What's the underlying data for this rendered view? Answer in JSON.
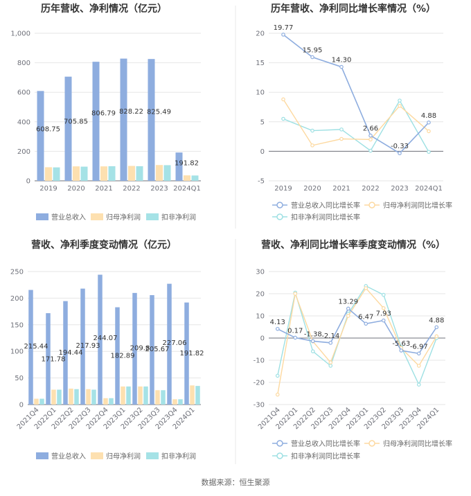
{
  "source_note": "数据来源：恒生聚源",
  "colors": {
    "rev": "#8eaddf",
    "np": "#fde0b0",
    "dnp": "#a5e2e6",
    "revLine": "#8eaddf",
    "npLine": "#fdd9a0",
    "dnpLine": "#9de0e3"
  },
  "chart_data": [
    {
      "id": "annual-amount",
      "type": "bar",
      "title": "历年营收、净利情况（亿元）",
      "categories": [
        "2019",
        "2020",
        "2021",
        "2022",
        "2023",
        "2024Q1"
      ],
      "ylim": [
        0,
        1000
      ],
      "yticks": [
        "0",
        "200",
        "400",
        "600",
        "800",
        "1,000"
      ],
      "series": [
        {
          "name": "营业总收入",
          "values": [
            608.75,
            705.85,
            806.79,
            828.22,
            825.49,
            191.82
          ],
          "labels": [
            "608.75",
            "705.85",
            "806.79",
            "828.22",
            "825.49",
            "191.82"
          ]
        },
        {
          "name": "归母净利润",
          "values": [
            92,
            98,
            98,
            101,
            107,
            37
          ]
        },
        {
          "name": "扣非净利润",
          "values": [
            91,
            96,
            99,
            99,
            106,
            36
          ]
        }
      ]
    },
    {
      "id": "annual-growth",
      "type": "line",
      "title": "历年营收、净利同比增长率情况（%）",
      "categories": [
        "2019",
        "2020",
        "2021",
        "2022",
        "2023",
        "2024Q1"
      ],
      "ylim": [
        -5,
        20
      ],
      "yticks": [
        "-5",
        "0",
        "5",
        "10",
        "15",
        "20"
      ],
      "series": [
        {
          "name": "营业总收入同比增长率",
          "values": [
            19.77,
            15.95,
            14.3,
            2.66,
            -0.33,
            4.88
          ],
          "labels": [
            "19.77",
            "15.95",
            "14.30",
            "2.66",
            "-0.33",
            "4.88"
          ]
        },
        {
          "name": "归母净利润同比增长率",
          "values": [
            8.8,
            1.0,
            2.1,
            2.0,
            7.7,
            3.4
          ]
        },
        {
          "name": "扣非净利润同比增长率",
          "values": [
            5.5,
            3.5,
            3.7,
            0.1,
            8.6,
            -0.1
          ]
        }
      ]
    },
    {
      "id": "quarterly-amount",
      "type": "bar",
      "title": "营收、净利季度变动情况（亿元）",
      "categories": [
        "2021Q4",
        "2022Q1",
        "2022Q2",
        "2022Q3",
        "2022Q4",
        "2023Q1",
        "2023Q2",
        "2023Q3",
        "2023Q4",
        "2024Q1"
      ],
      "ylim": [
        0,
        250
      ],
      "yticks": [
        "0",
        "50",
        "100",
        "150",
        "200",
        "250"
      ],
      "series": [
        {
          "name": "营业总收入",
          "values": [
            215.44,
            171.78,
            194.44,
            217.93,
            244.07,
            182.89,
            209.8,
            205.67,
            227.06,
            191.82
          ],
          "labels": [
            "215.44",
            "171.78",
            "194.44",
            "217.93",
            "244.07",
            "182.89",
            "209.8",
            "205.67",
            "227.06",
            "191.82"
          ]
        },
        {
          "name": "归母净利润",
          "values": [
            11,
            28,
            30,
            29,
            12,
            34,
            34,
            27,
            10,
            36
          ]
        },
        {
          "name": "扣非净利润",
          "values": [
            11,
            28,
            29,
            28,
            12,
            34,
            34,
            27,
            10,
            35
          ]
        }
      ]
    },
    {
      "id": "quarterly-growth",
      "type": "line",
      "title": "营收、净利同比增长率季度变动情况（%）",
      "categories": [
        "2021Q4",
        "2022Q1",
        "2022Q2",
        "2022Q3",
        "2022Q4",
        "2023Q1",
        "2023Q2",
        "2023Q3",
        "2023Q4",
        "2024Q1"
      ],
      "ylim": [
        -30,
        30
      ],
      "yticks": [
        "-30",
        "-20",
        "-10",
        "0",
        "10",
        "20",
        "30"
      ],
      "series": [
        {
          "name": "营业总收入同比增长率",
          "values": [
            4.13,
            0.17,
            -1.38,
            -2.14,
            13.29,
            6.47,
            7.93,
            -5.63,
            -6.97,
            4.88
          ],
          "labels": [
            "4.13",
            "0.17",
            "-1.38",
            "-2.14",
            "13.29",
            "6.47",
            "7.93",
            "-5.63",
            "-6.97",
            "4.88"
          ]
        },
        {
          "name": "归母净利润同比增长率",
          "values": [
            -25.5,
            20.0,
            -1.5,
            -11.0,
            10.0,
            22.5,
            13.5,
            -4.5,
            -12.5,
            0.8
          ]
        },
        {
          "name": "扣非净利润同比增长率",
          "values": [
            -17.0,
            20.5,
            -6.0,
            -12.5,
            11.0,
            23.5,
            19.5,
            -4.0,
            -21.0,
            0.0
          ]
        }
      ]
    }
  ]
}
